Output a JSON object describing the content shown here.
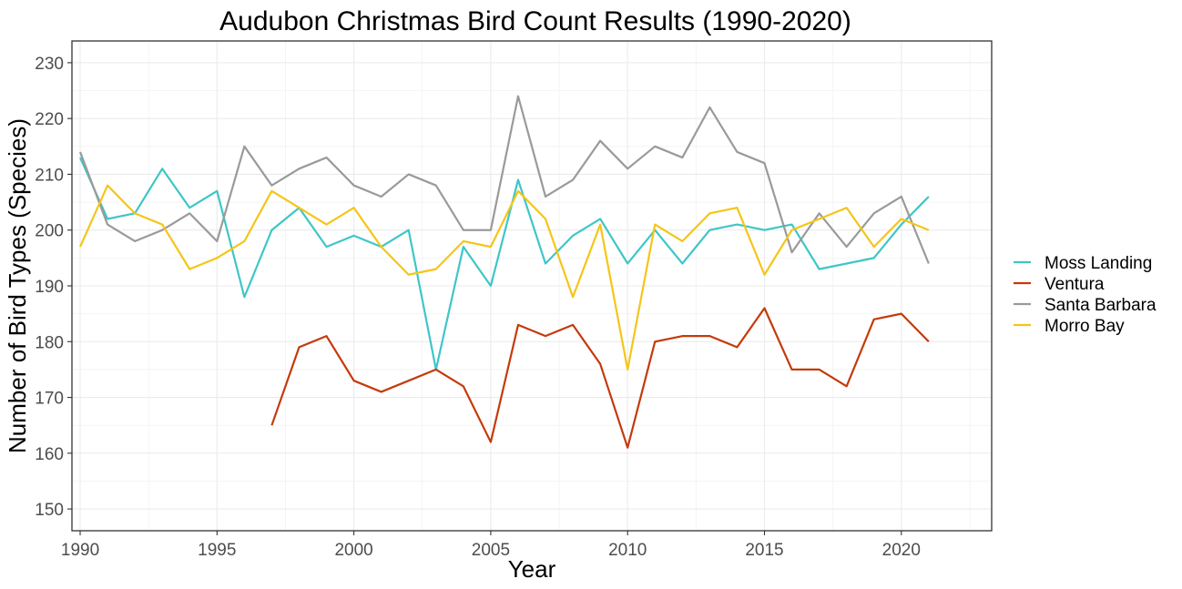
{
  "chart_data": {
    "type": "line",
    "title": "Audubon Christmas Bird Count Results (1990-2020)",
    "xlabel": "Year",
    "ylabel": "Number of Bird Types (Species)",
    "xlim": [
      1989.7,
      2023.3
    ],
    "ylim": [
      146.1,
      233.9
    ],
    "xticks": [
      1990,
      1995,
      2000,
      2005,
      2010,
      2015,
      2020
    ],
    "yticks": [
      150,
      160,
      170,
      180,
      190,
      200,
      210,
      220,
      230
    ],
    "grid": true,
    "legend_position": "right",
    "series": [
      {
        "name": "Moss Landing",
        "color": "#3ec6c8",
        "x": [
          1990,
          1991,
          1992,
          1993,
          1994,
          1995,
          1996,
          1997,
          1998,
          1999,
          2000,
          2001,
          2002,
          2003,
          2004,
          2005,
          2006,
          2007,
          2008,
          2009,
          2010,
          2011,
          2012,
          2013,
          2014,
          2015,
          2016,
          2017,
          2018,
          2019,
          2020,
          2021
        ],
        "values": [
          213,
          202,
          203,
          211,
          204,
          207,
          188,
          200,
          204,
          197,
          199,
          197,
          200,
          175,
          197,
          190,
          209,
          194,
          199,
          202,
          194,
          200,
          194,
          200,
          201,
          200,
          201,
          193,
          194,
          195,
          201,
          206
        ]
      },
      {
        "name": "Ventura",
        "color": "#c43a0a",
        "x": [
          1997,
          1998,
          1999,
          2000,
          2001,
          2002,
          2003,
          2004,
          2005,
          2006,
          2007,
          2008,
          2009,
          2010,
          2011,
          2012,
          2013,
          2014,
          2015,
          2016,
          2017,
          2018,
          2019,
          2020,
          2021
        ],
        "values": [
          165,
          179,
          181,
          173,
          171,
          173,
          175,
          172,
          162,
          183,
          181,
          183,
          176,
          161,
          180,
          181,
          181,
          179,
          186,
          175,
          175,
          172,
          184,
          185,
          180
        ]
      },
      {
        "name": "Santa Barbara",
        "color": "#9a9a9a",
        "x": [
          1990,
          1991,
          1992,
          1993,
          1994,
          1995,
          1996,
          1997,
          1998,
          1999,
          2000,
          2001,
          2002,
          2003,
          2004,
          2005,
          2006,
          2007,
          2008,
          2009,
          2010,
          2011,
          2012,
          2013,
          2014,
          2015,
          2016,
          2017,
          2018,
          2019,
          2020,
          2021
        ],
        "values": [
          214,
          201,
          198,
          200,
          203,
          198,
          215,
          208,
          211,
          213,
          208,
          206,
          210,
          208,
          200,
          200,
          224,
          206,
          209,
          216,
          211,
          215,
          213,
          222,
          214,
          212,
          196,
          203,
          197,
          203,
          206,
          194
        ]
      },
      {
        "name": "Morro Bay",
        "color": "#f5c518",
        "x": [
          1990,
          1991,
          1992,
          1993,
          1994,
          1995,
          1996,
          1997,
          1998,
          1999,
          2000,
          2001,
          2002,
          2003,
          2004,
          2005,
          2006,
          2007,
          2008,
          2009,
          2010,
          2011,
          2012,
          2013,
          2014,
          2015,
          2016,
          2017,
          2018,
          2019,
          2020,
          2021
        ],
        "values": [
          197,
          208,
          203,
          201,
          193,
          195,
          198,
          207,
          204,
          201,
          204,
          197,
          192,
          193,
          198,
          197,
          207,
          202,
          188,
          201,
          175,
          201,
          198,
          203,
          204,
          192,
          200,
          202,
          204,
          197,
          202,
          200
        ]
      }
    ]
  }
}
